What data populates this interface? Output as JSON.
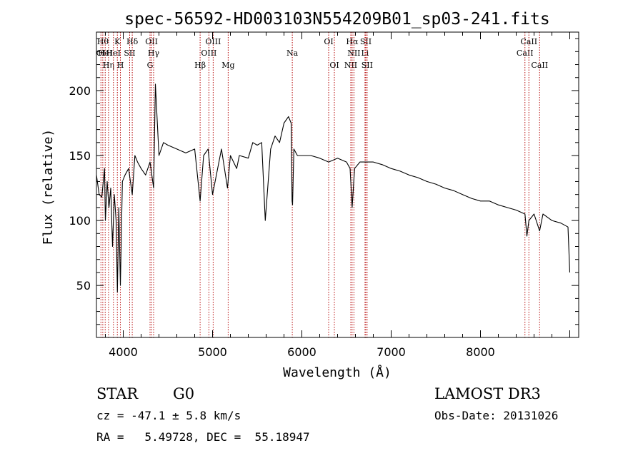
{
  "chart_data": {
    "type": "line",
    "title": "spec-56592-HD003103N554209B01_sp03-241.fits",
    "xlabel": "Wavelength (Å)",
    "ylabel": "Flux (relative)",
    "xlim": [
      3700,
      9100
    ],
    "ylim": [
      10,
      245
    ],
    "xticks": [
      4000,
      5000,
      6000,
      7000,
      8000
    ],
    "yticks": [
      50,
      100,
      150,
      200
    ],
    "grid": false,
    "series": [
      {
        "name": "spectrum",
        "x": [
          3700,
          3730,
          3760,
          3790,
          3800,
          3820,
          3840,
          3860,
          3880,
          3900,
          3920,
          3934,
          3950,
          3968,
          3990,
          4020,
          4060,
          4101,
          4130,
          4160,
          4200,
          4250,
          4300,
          4340,
          4360,
          4400,
          4450,
          4500,
          4600,
          4700,
          4800,
          4861,
          4900,
          4950,
          5000,
          5100,
          5167,
          5200,
          5270,
          5300,
          5400,
          5450,
          5500,
          5550,
          5590,
          5650,
          5700,
          5750,
          5800,
          5850,
          5880,
          5890,
          5896,
          5910,
          5950,
          6000,
          6100,
          6200,
          6300,
          6400,
          6500,
          6540,
          6563,
          6590,
          6650,
          6700,
          6800,
          6900,
          7000,
          7100,
          7200,
          7300,
          7400,
          7500,
          7600,
          7700,
          7800,
          7900,
          8000,
          8100,
          8200,
          8300,
          8400,
          8498,
          8520,
          8542,
          8600,
          8662,
          8700,
          8800,
          8900,
          8980,
          9000
        ],
        "values": [
          135,
          120,
          118,
          140,
          100,
          130,
          110,
          125,
          80,
          120,
          100,
          45,
          110,
          50,
          130,
          135,
          140,
          120,
          150,
          145,
          140,
          135,
          145,
          125,
          205,
          150,
          160,
          158,
          155,
          152,
          155,
          115,
          150,
          155,
          120,
          155,
          125,
          150,
          140,
          150,
          148,
          160,
          158,
          160,
          100,
          155,
          165,
          160,
          175,
          180,
          175,
          115,
          112,
          155,
          150,
          150,
          150,
          148,
          145,
          148,
          145,
          140,
          110,
          140,
          145,
          145,
          145,
          143,
          140,
          138,
          135,
          133,
          130,
          128,
          125,
          123,
          120,
          117,
          115,
          115,
          112,
          110,
          108,
          105,
          88,
          100,
          105,
          92,
          105,
          100,
          98,
          95,
          60
        ]
      }
    ],
    "lines": [
      {
        "wl": 3750,
        "label": "OI",
        "row": 2
      },
      {
        "wl": 3771,
        "label": "Hθ",
        "row": 1
      },
      {
        "wl": 3798,
        "label": "HeI",
        "row": 2
      },
      {
        "wl": 3835,
        "label": "Hη",
        "row": 3
      },
      {
        "wl": 3890,
        "label": "HeI",
        "row": 2
      },
      {
        "wl": 3934,
        "label": "K",
        "row": 1
      },
      {
        "wl": 3968,
        "label": "H",
        "row": 3
      },
      {
        "wl": 4072,
        "label": "SII",
        "row": 2
      },
      {
        "wl": 4101,
        "label": "Hδ",
        "row": 1
      },
      {
        "wl": 4300,
        "label": "G",
        "row": 3
      },
      {
        "wl": 4317,
        "label": "OII",
        "row": 1
      },
      {
        "wl": 4340,
        "label": "Hγ",
        "row": 2
      },
      {
        "wl": 4861,
        "label": "Hβ",
        "row": 3
      },
      {
        "wl": 4959,
        "label": "OIII",
        "row": 2
      },
      {
        "wl": 5007,
        "label": "OIII",
        "row": 1
      },
      {
        "wl": 5175,
        "label": "Mg",
        "row": 3
      },
      {
        "wl": 5893,
        "label": "Na",
        "row": 2
      },
      {
        "wl": 6300,
        "label": "OI",
        "row": 1
      },
      {
        "wl": 6364,
        "label": "OI",
        "row": 3
      },
      {
        "wl": 6548,
        "label": "NII",
        "row": 3
      },
      {
        "wl": 6563,
        "label": "Hα",
        "row": 1
      },
      {
        "wl": 6583,
        "label": "NII",
        "row": 2
      },
      {
        "wl": 6707,
        "label": "Li",
        "row": 2
      },
      {
        "wl": 6716,
        "label": "SII",
        "row": 1
      },
      {
        "wl": 6731,
        "label": "SII",
        "row": 3
      },
      {
        "wl": 8498,
        "label": "CaII",
        "row": 2
      },
      {
        "wl": 8542,
        "label": "CaII",
        "row": 1
      },
      {
        "wl": 8662,
        "label": "CaII",
        "row": 3
      }
    ]
  },
  "info": {
    "object_class": "STAR",
    "subclass": "G0",
    "survey": "LAMOST DR3",
    "cz": "cz = -47.1 ± 5.8 km/s",
    "obs_date": "Obs-Date: 20131026",
    "radec": "RA =   5.49728, DEC =  55.18947"
  }
}
